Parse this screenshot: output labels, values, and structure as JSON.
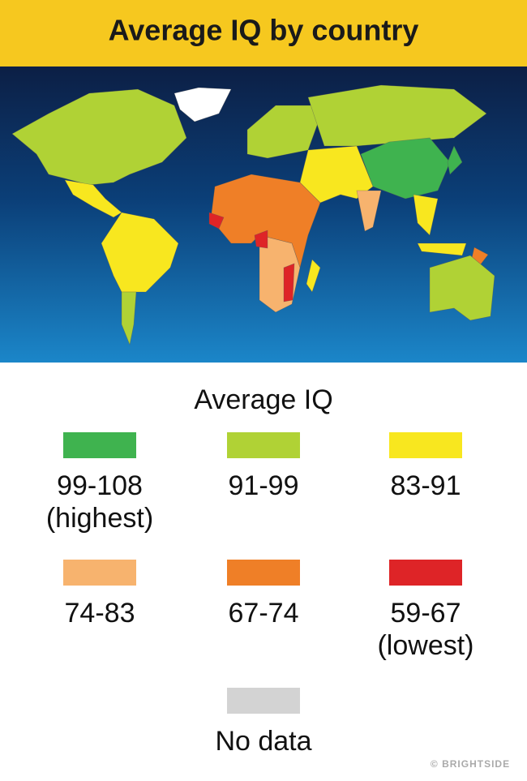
{
  "header": {
    "title": "Average IQ by country"
  },
  "legend": {
    "title": "Average IQ",
    "items": [
      {
        "label": [
          "99-108",
          "(highest)"
        ],
        "color": "#3fb34f"
      },
      {
        "label": [
          "91-99"
        ],
        "color": "#b0d235"
      },
      {
        "label": [
          "83-91"
        ],
        "color": "#f8e71f"
      },
      {
        "label": [
          "74-83"
        ],
        "color": "#f7b36e"
      },
      {
        "label": [
          "67-74"
        ],
        "color": "#ef7f27"
      },
      {
        "label": [
          "59-67",
          "(lowest)"
        ],
        "color": "#de2427"
      },
      {
        "label": [
          "No data"
        ],
        "color": "#d3d3d3"
      }
    ]
  },
  "footer": {
    "credit": "© BRIGHTSIDE"
  }
}
